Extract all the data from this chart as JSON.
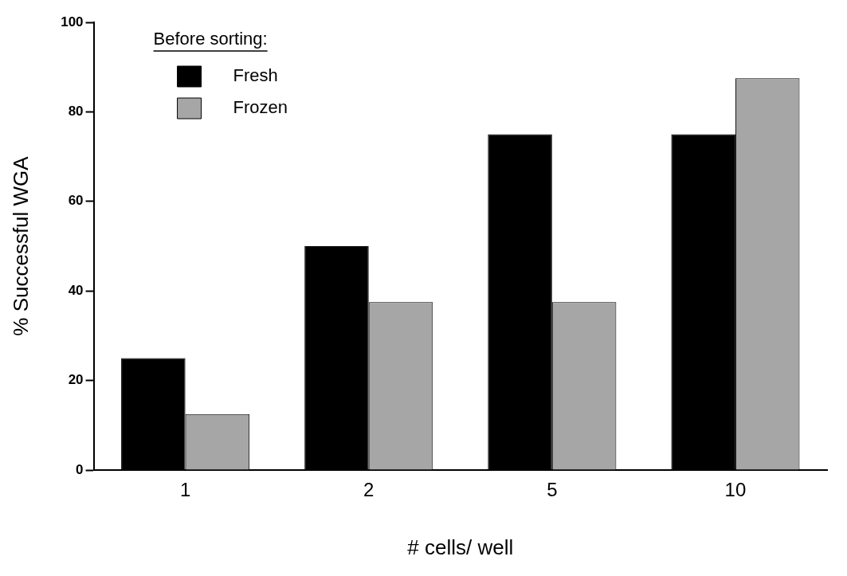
{
  "chart_data": {
    "type": "bar",
    "xlabel": "# cells/ well",
    "ylabel": "% Successful WGA",
    "legend_title": "Before sorting:",
    "categories": [
      "1",
      "2",
      "5",
      "10"
    ],
    "series": [
      {
        "name": "Fresh",
        "color": "#000000",
        "values": [
          25,
          50,
          75,
          75
        ]
      },
      {
        "name": "Frozen",
        "color": "#a6a6a6",
        "values": [
          12.5,
          37.5,
          37.5,
          87.5
        ]
      }
    ],
    "ylim": [
      0,
      100
    ],
    "yticks": [
      0,
      20,
      40,
      60,
      80,
      100
    ],
    "grid": false,
    "legend": "top left"
  }
}
